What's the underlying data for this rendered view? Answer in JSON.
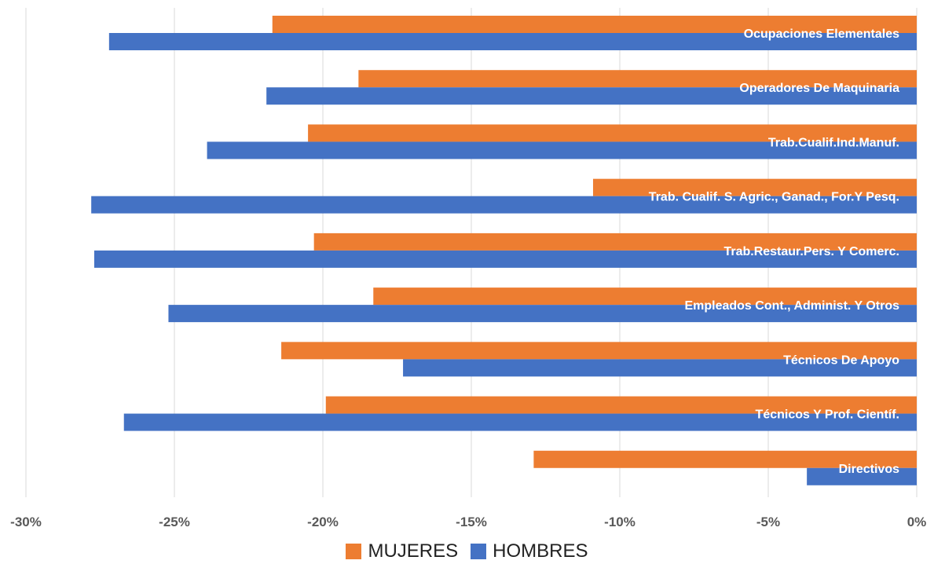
{
  "chart_data": {
    "type": "bar",
    "orientation": "horizontal",
    "categories": [
      "Ocupaciones Elementales",
      "Operadores De Maquinaria",
      "Trab.Cualif.Ind.Manuf.",
      "Trab. Cualif. S. Agric., Ganad., For.Y Pesq.",
      "Trab.Restaur.Pers. Y Comerc.",
      "Empleados Cont., Administ. Y Otros",
      "Técnicos De Apoyo",
      "Técnicos Y Prof. Científ.",
      "Directivos"
    ],
    "series": [
      {
        "name": "MUJERES",
        "color": "#ED7D31",
        "values": [
          -21.7,
          -18.8,
          -20.5,
          -10.9,
          -20.3,
          -18.3,
          -21.4,
          -19.9,
          -12.9
        ]
      },
      {
        "name": "HOMBRES",
        "color": "#4472C4",
        "values": [
          -27.2,
          -21.9,
          -23.9,
          -27.8,
          -27.7,
          -25.2,
          -17.3,
          -26.7,
          -3.7
        ]
      }
    ],
    "xlim": [
      -30,
      0
    ],
    "xticks": [
      -30,
      -25,
      -20,
      -15,
      -10,
      -5,
      0
    ],
    "xtick_labels": [
      "-30%",
      "-25%",
      "-20%",
      "-15%",
      "-10%",
      "-5%",
      "0%"
    ],
    "grid": true,
    "legend_position": "bottom"
  }
}
